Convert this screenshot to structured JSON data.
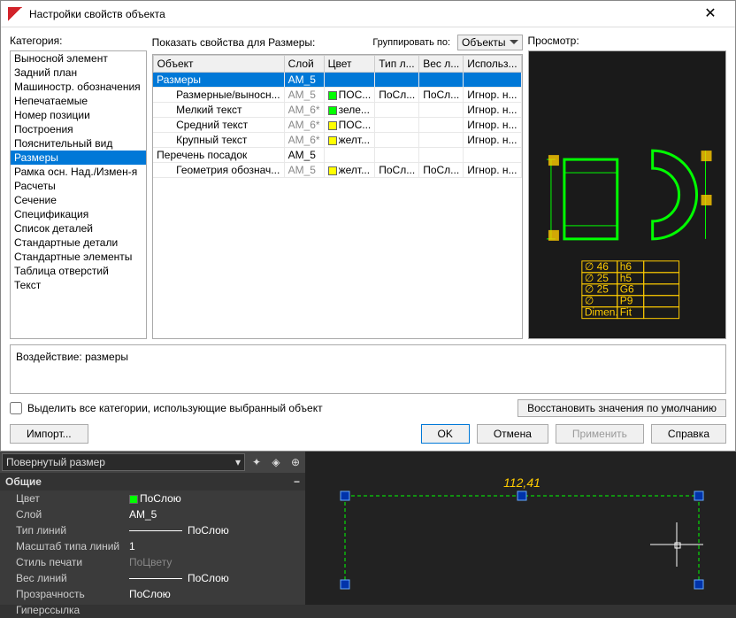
{
  "dialog": {
    "title": "Настройки свойств объекта",
    "category_label": "Категория:",
    "show_props_label": "Показать свойства для Размеры:",
    "group_by_label": "Группировать по:",
    "group_by_value": "Объекты",
    "preview_label": "Просмотр:",
    "impact_label": "Воздействие: размеры",
    "checkbox_label": "Выделить все категории, использующие выбранный объект",
    "restore_label": "Восстановить значения по умолчанию",
    "import_label": "Импорт...",
    "ok_label": "OK",
    "cancel_label": "Отмена",
    "apply_label": "Применить",
    "help_label": "Справка"
  },
  "categories": [
    "Выносной элемент",
    "Задний план",
    "Машиностр. обозначения",
    "Непечатаемые",
    "Номер позиции",
    "Построения",
    "Пояснительный вид",
    "Размеры",
    "Рамка осн. Над./Измен-я",
    "Расчеты",
    "Сечение",
    "Спецификация",
    "Список деталей",
    "Стандартные детали",
    "Стандартные элементы",
    "Таблица отверстий",
    "Текст"
  ],
  "selected_category_index": 7,
  "grid": {
    "columns": [
      "Объект",
      "Слой",
      "Цвет",
      "Тип л...",
      "Вес л...",
      "Использ..."
    ],
    "rows": [
      {
        "object": "Размеры",
        "layer": "AM_5",
        "color": "",
        "ltype": "",
        "lw": "",
        "use": "",
        "indent": 0,
        "selected": true,
        "grey_layer": false
      },
      {
        "object": "Размерные/выносн...",
        "layer": "AM_5",
        "color": "ПОС...",
        "color_hex": "#00ff00",
        "ltype": "ПоСл...",
        "lw": "ПоСл...",
        "use": "Игнор. н...",
        "indent": 1,
        "grey_layer": true
      },
      {
        "object": "Мелкий текст",
        "layer": "AM_6*",
        "color": "зеле...",
        "color_hex": "#00ff00",
        "ltype": "",
        "lw": "",
        "use": "Игнор. н...",
        "indent": 1,
        "grey_layer": true
      },
      {
        "object": "Средний текст",
        "layer": "AM_6*",
        "color": "ПОС...",
        "color_hex": "#ffff00",
        "ltype": "",
        "lw": "",
        "use": "Игнор. н...",
        "indent": 1,
        "grey_layer": true
      },
      {
        "object": "Крупный текст",
        "layer": "AM_6*",
        "color": "желт...",
        "color_hex": "#ffff00",
        "ltype": "",
        "lw": "",
        "use": "Игнор. н...",
        "indent": 1,
        "grey_layer": true
      },
      {
        "object": "Перечень посадок",
        "layer": "AM_5",
        "color": "",
        "ltype": "",
        "lw": "",
        "use": "",
        "indent": 0,
        "grey_layer": false
      },
      {
        "object": "Геометрия обознач...",
        "layer": "AM_5",
        "color": "желт...",
        "color_hex": "#ffff00",
        "ltype": "ПоСл...",
        "lw": "ПоСл...",
        "use": "Игнор. н...",
        "indent": 1,
        "grey_layer": true
      }
    ]
  },
  "preview": {
    "bg": "#1a1a1a",
    "table": {
      "rows": [
        [
          "∅ 46",
          "h6",
          ""
        ],
        [
          "∅ 25",
          "h5",
          ""
        ],
        [
          "∅ 25",
          "G6",
          ""
        ],
        [
          "∅",
          "P9",
          ""
        ],
        [
          "Dimen.",
          "Fit",
          ""
        ]
      ],
      "color": "#ffcc00"
    }
  },
  "palette": {
    "selector": "Повернутый размер",
    "group": "Общие",
    "rows": [
      {
        "k": "Цвет",
        "v": "ПоСлою",
        "swatch": "#00ff00"
      },
      {
        "k": "Слой",
        "v": "AM_5"
      },
      {
        "k": "Тип линий",
        "v": "ПоСлою",
        "line": true
      },
      {
        "k": "Масштаб типа линий",
        "v": "1"
      },
      {
        "k": "Стиль печати",
        "v": "ПоЦвету",
        "grey": true
      },
      {
        "k": "Вес линий",
        "v": "ПоСлою",
        "line": true
      },
      {
        "k": "Прозрачность",
        "v": "ПоСлою"
      },
      {
        "k": "Гиперссылка",
        "v": ""
      }
    ]
  },
  "viewport": {
    "dimension_value": "112,41"
  }
}
